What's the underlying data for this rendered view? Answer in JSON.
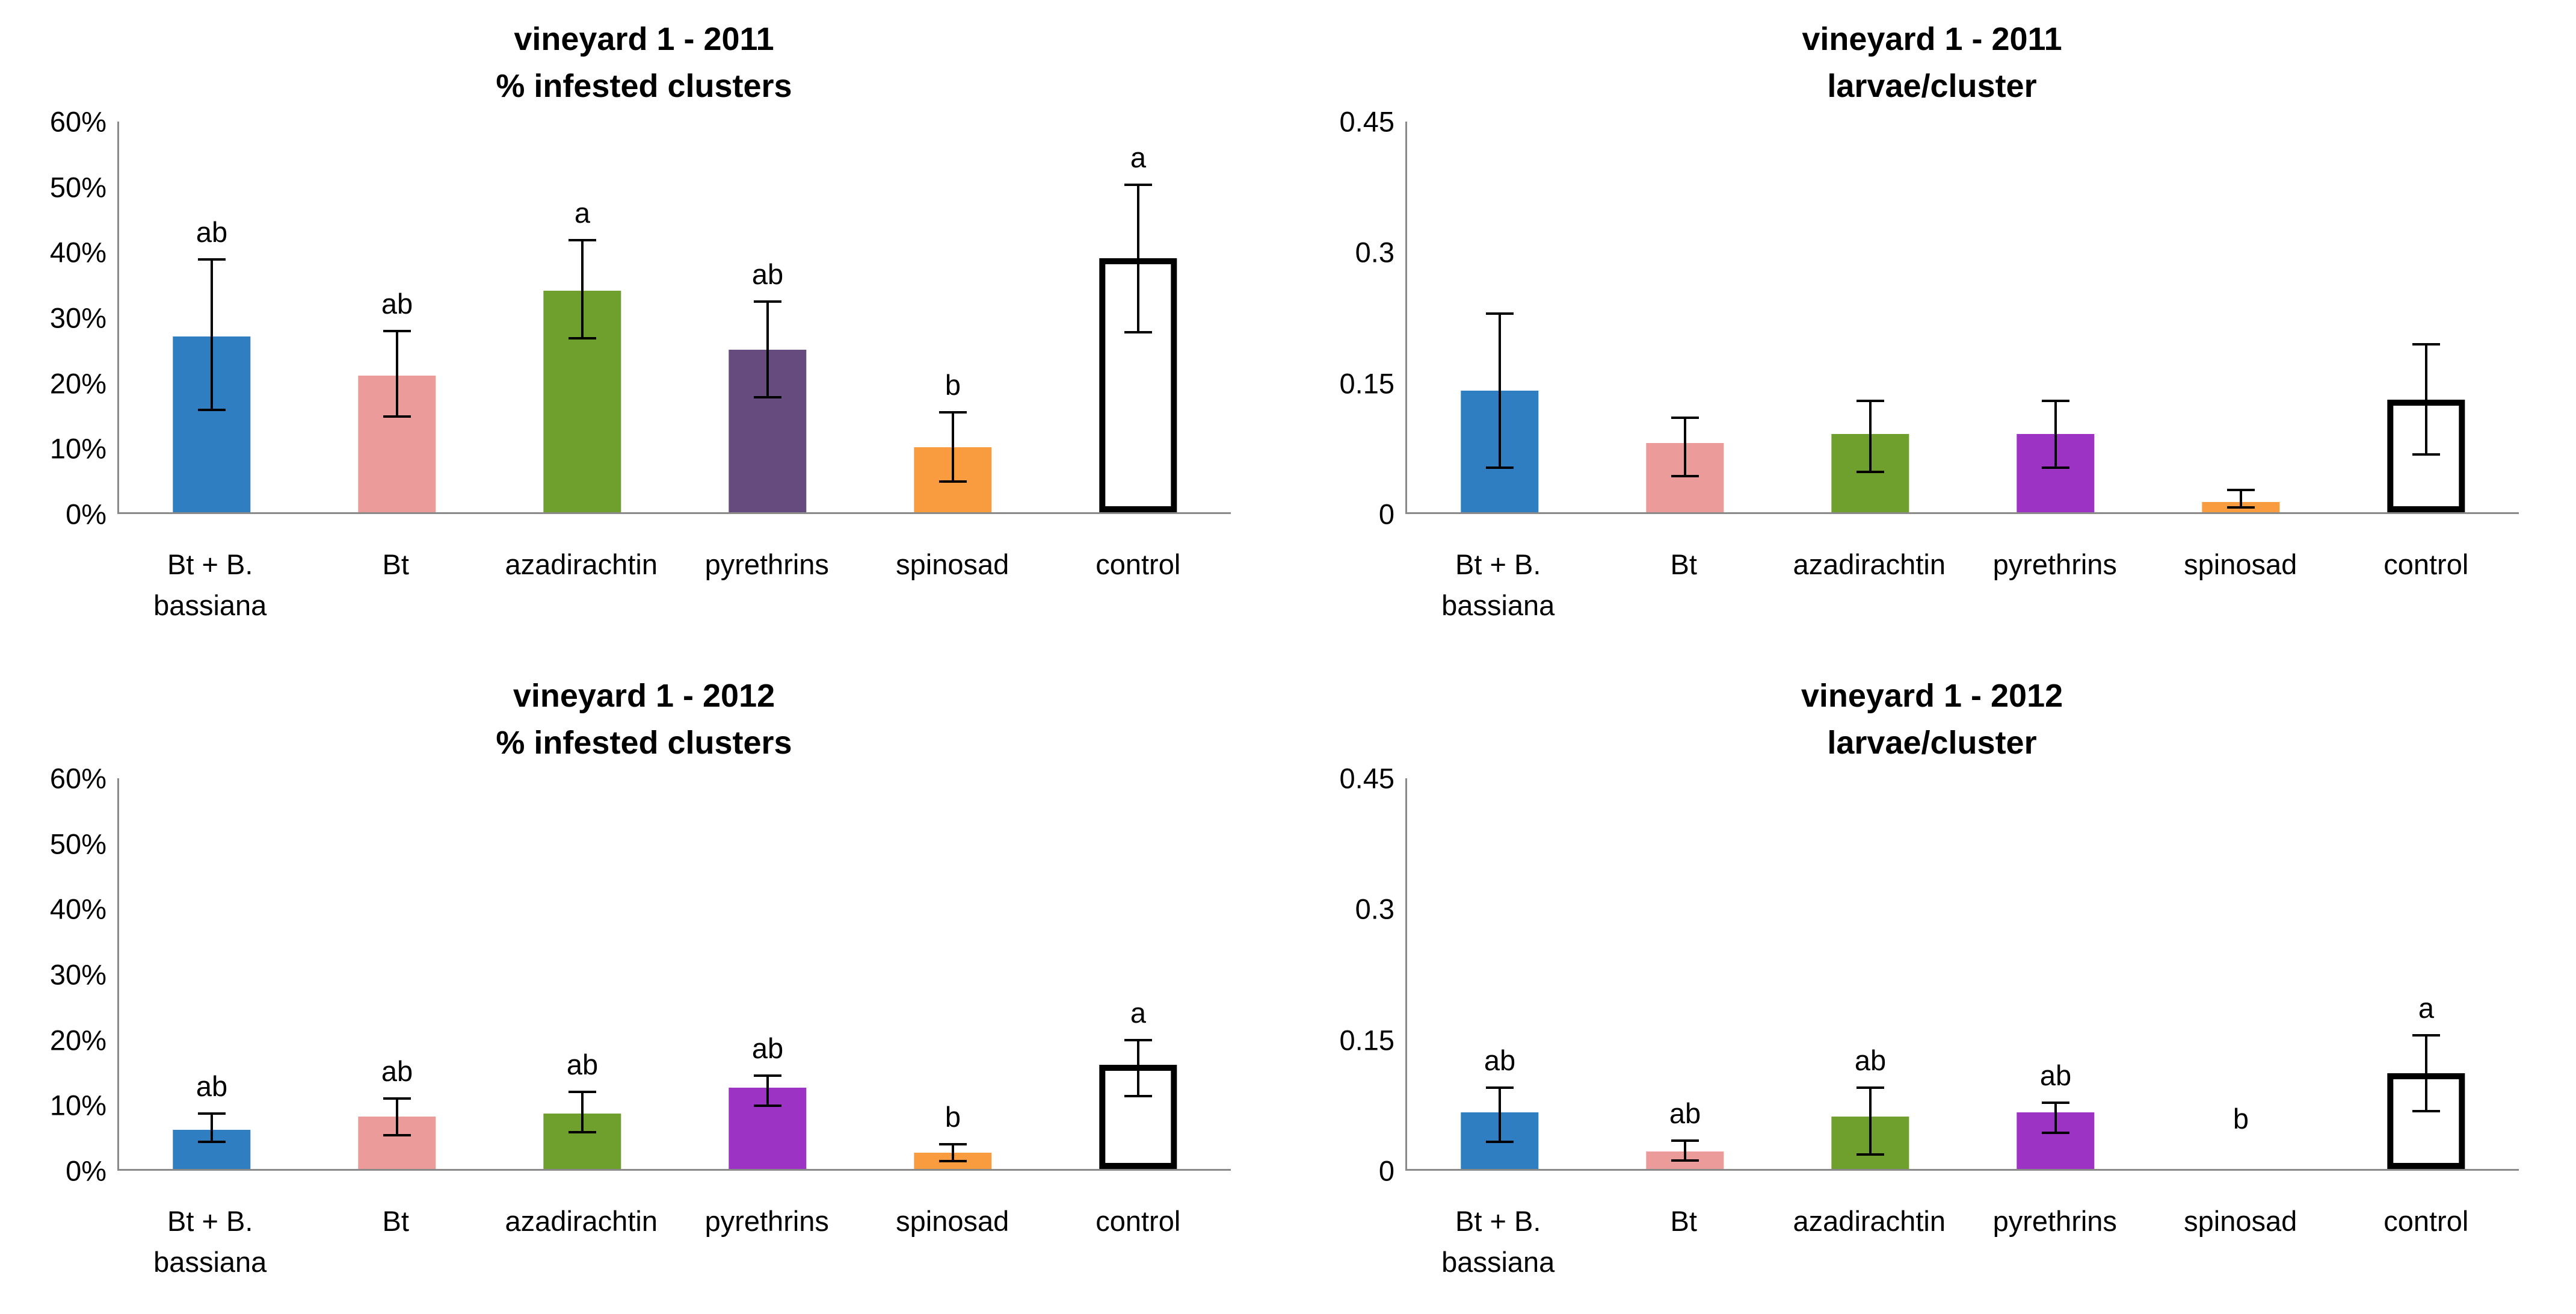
{
  "figure": {
    "background": "#FFFFFF"
  },
  "colors": {
    "blue": "#2E7EC1",
    "pink": "#EC9B9B",
    "green": "#6FA02E",
    "purple_dark": "#664C7E",
    "purple_bright": "#9C33C4",
    "orange": "#F99C40",
    "control_fill": "#FFFFFF",
    "control_border": "#000000",
    "axis": "#8A8A8A"
  },
  "chart_data": [
    {
      "type": "bar",
      "position": "top-left",
      "title": "vineyard 1 - 2011",
      "subtitle": "% infested clusters",
      "ylim": [
        0,
        60
      ],
      "grid": false,
      "legend": "none",
      "yticks": [
        {
          "label": "60%",
          "value": 60
        },
        {
          "label": "50%",
          "value": 50
        },
        {
          "label": "40%",
          "value": 40
        },
        {
          "label": "30%",
          "value": 30
        },
        {
          "label": "20%",
          "value": 20
        },
        {
          "label": "10%",
          "value": 10
        },
        {
          "label": "0%",
          "value": 0
        }
      ],
      "categories": [
        [
          "Bt + B.",
          "bassiana"
        ],
        [
          "Bt"
        ],
        [
          "azadirachtin"
        ],
        [
          "pyrethrins"
        ],
        [
          "spinosad"
        ],
        [
          "control"
        ]
      ],
      "bars": [
        {
          "category": "Bt + B. bassiana",
          "value": 27,
          "err_low": 15.5,
          "err_high": 39,
          "letter": "ab",
          "color": "blue"
        },
        {
          "category": "Bt",
          "value": 21,
          "err_low": 14.5,
          "err_high": 28,
          "letter": "ab",
          "color": "pink"
        },
        {
          "category": "azadirachtin",
          "value": 34,
          "err_low": 26.5,
          "err_high": 42,
          "letter": "a",
          "color": "green"
        },
        {
          "category": "pyrethrins",
          "value": 25,
          "err_low": 17.5,
          "err_high": 32.5,
          "letter": "ab",
          "color": "purple_dark"
        },
        {
          "category": "spinosad",
          "value": 10,
          "err_low": 4.5,
          "err_high": 15.5,
          "letter": "b",
          "color": "orange"
        },
        {
          "category": "control",
          "value": 39,
          "err_low": 27.5,
          "err_high": 50.5,
          "letter": "a",
          "color": "control"
        }
      ]
    },
    {
      "type": "bar",
      "position": "top-right",
      "title": "vineyard 1 - 2011",
      "subtitle": "larvae/cluster",
      "ylim": [
        0,
        0.45
      ],
      "grid": false,
      "legend": "none",
      "yticks": [
        {
          "label": "0.45",
          "value": 0.45
        },
        {
          "label": "0.3",
          "value": 0.3
        },
        {
          "label": "0.15",
          "value": 0.15
        },
        {
          "label": "0",
          "value": 0
        }
      ],
      "categories": [
        [
          "Bt + B.",
          "bassiana"
        ],
        [
          "Bt"
        ],
        [
          "azadirachtin"
        ],
        [
          "pyrethrins"
        ],
        [
          "spinosad"
        ],
        [
          "control"
        ]
      ],
      "bars": [
        {
          "category": "Bt + B. bassiana",
          "value": 0.14,
          "err_low": 0.05,
          "err_high": 0.23,
          "letter": "",
          "color": "blue"
        },
        {
          "category": "Bt",
          "value": 0.08,
          "err_low": 0.04,
          "err_high": 0.11,
          "letter": "",
          "color": "pink"
        },
        {
          "category": "azadirachtin",
          "value": 0.09,
          "err_low": 0.045,
          "err_high": 0.13,
          "letter": "",
          "color": "green"
        },
        {
          "category": "pyrethrins",
          "value": 0.09,
          "err_low": 0.05,
          "err_high": 0.13,
          "letter": "",
          "color": "purple_bright"
        },
        {
          "category": "spinosad",
          "value": 0.012,
          "err_low": 0.004,
          "err_high": 0.027,
          "letter": "",
          "color": "orange"
        },
        {
          "category": "control",
          "value": 0.13,
          "err_low": 0.065,
          "err_high": 0.195,
          "letter": "",
          "color": "control"
        }
      ]
    },
    {
      "type": "bar",
      "position": "bottom-left",
      "title": "vineyard 1 - 2012",
      "subtitle": "% infested clusters",
      "ylim": [
        0,
        60
      ],
      "grid": false,
      "legend": "none",
      "yticks": [
        {
          "label": "60%",
          "value": 60
        },
        {
          "label": "50%",
          "value": 50
        },
        {
          "label": "40%",
          "value": 40
        },
        {
          "label": "30%",
          "value": 30
        },
        {
          "label": "20%",
          "value": 20
        },
        {
          "label": "10%",
          "value": 10
        },
        {
          "label": "0%",
          "value": 0
        }
      ],
      "categories": [
        [
          "Bt + B.",
          "bassiana"
        ],
        [
          "Bt"
        ],
        [
          "azadirachtin"
        ],
        [
          "pyrethrins"
        ],
        [
          "spinosad"
        ],
        [
          "control"
        ]
      ],
      "bars": [
        {
          "category": "Bt + B. bassiana",
          "value": 6,
          "err_low": 4,
          "err_high": 8.7,
          "letter": "ab",
          "color": "blue"
        },
        {
          "category": "Bt",
          "value": 8,
          "err_low": 5,
          "err_high": 11,
          "letter": "ab",
          "color": "pink"
        },
        {
          "category": "azadirachtin",
          "value": 8.5,
          "err_low": 5.5,
          "err_high": 12,
          "letter": "ab",
          "color": "green"
        },
        {
          "category": "pyrethrins",
          "value": 12.5,
          "err_low": 9.5,
          "err_high": 14.5,
          "letter": "ab",
          "color": "purple_bright"
        },
        {
          "category": "spinosad",
          "value": 2.5,
          "err_low": 1,
          "err_high": 4,
          "letter": "b",
          "color": "orange"
        },
        {
          "category": "control",
          "value": 16,
          "err_low": 11,
          "err_high": 20,
          "letter": "a",
          "color": "control"
        }
      ]
    },
    {
      "type": "bar",
      "position": "bottom-right",
      "title": "vineyard 1 - 2012",
      "subtitle": "larvae/cluster",
      "ylim": [
        0,
        0.45
      ],
      "grid": false,
      "legend": "none",
      "yticks": [
        {
          "label": "0.45",
          "value": 0.45
        },
        {
          "label": "0.3",
          "value": 0.3
        },
        {
          "label": "0.15",
          "value": 0.15
        },
        {
          "label": "0",
          "value": 0
        }
      ],
      "categories": [
        [
          "Bt + B.",
          "bassiana"
        ],
        [
          "Bt"
        ],
        [
          "azadirachtin"
        ],
        [
          "pyrethrins"
        ],
        [
          "spinosad"
        ],
        [
          "control"
        ]
      ],
      "bars": [
        {
          "category": "Bt + B. bassiana",
          "value": 0.065,
          "err_low": 0.03,
          "err_high": 0.095,
          "letter": "ab",
          "color": "blue"
        },
        {
          "category": "Bt",
          "value": 0.02,
          "err_low": 0.008,
          "err_high": 0.034,
          "letter": "ab",
          "color": "pink"
        },
        {
          "category": "azadirachtin",
          "value": 0.06,
          "err_low": 0.015,
          "err_high": 0.095,
          "letter": "ab",
          "color": "green"
        },
        {
          "category": "pyrethrins",
          "value": 0.065,
          "err_low": 0.04,
          "err_high": 0.078,
          "letter": "ab",
          "color": "purple_bright"
        },
        {
          "category": "spinosad",
          "value": 0,
          "err_low": null,
          "err_high": null,
          "letter": "b",
          "letter_y": 0.028,
          "color": "orange"
        },
        {
          "category": "control",
          "value": 0.11,
          "err_low": 0.065,
          "err_high": 0.155,
          "letter": "a",
          "color": "control"
        }
      ]
    }
  ]
}
